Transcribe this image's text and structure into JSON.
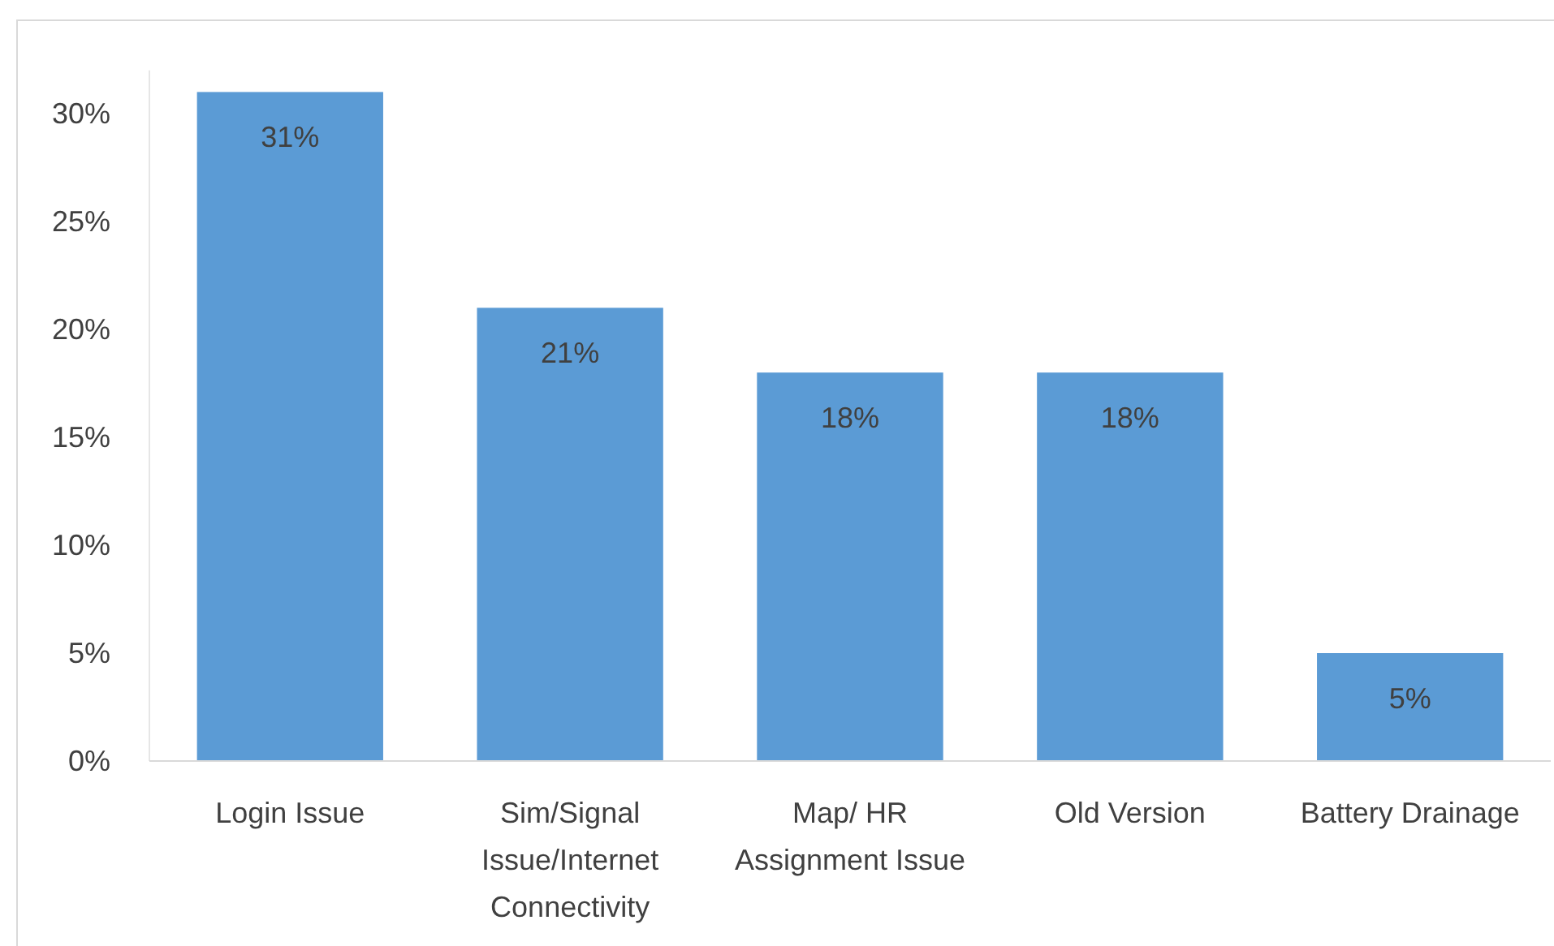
{
  "chart_data": {
    "type": "bar",
    "categories": [
      "Login Issue",
      "Sim/Signal Issue/Internet Connectivity",
      "Map/ HR Assignment Issue",
      "Old Version",
      "Battery Drainage"
    ],
    "values": [
      31,
      21,
      18,
      18,
      5
    ],
    "color": "#5b9bd5",
    "value_labels": [
      "31%",
      "21%",
      "18%",
      "18%",
      "5%"
    ],
    "ylim": [
      0,
      32
    ],
    "yticks": [
      {
        "value": 0,
        "label": "0%"
      },
      {
        "value": 5,
        "label": "5%"
      },
      {
        "value": 10,
        "label": "10%"
      },
      {
        "value": 15,
        "label": "15%"
      },
      {
        "value": 20,
        "label": "20%"
      },
      {
        "value": 25,
        "label": "25%"
      },
      {
        "value": 30,
        "label": "30%"
      }
    ],
    "grid": false
  }
}
